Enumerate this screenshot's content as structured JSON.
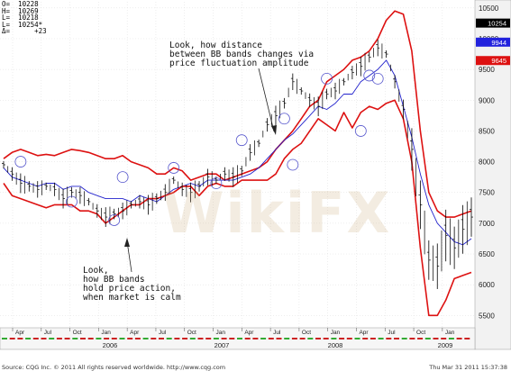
{
  "ohlc": {
    "open": "O=  10228",
    "high": "H=  10269",
    "low": "L=  10218",
    "close": "L=  10254*",
    "delta": "Δ=      +23"
  },
  "annotations": {
    "top": "Look, how distance\nbetween BB bands changes via\nprice fluctuation amplitude",
    "bottom": "Look,\nhow BB bands\nhold price action,\nwhen market is calm"
  },
  "watermark": "WikiFX",
  "footer": {
    "source": "Source: CQG Inc. © 2011 All rights reserved worldwide. http://www.cqg.com",
    "timestamp": "Thu Mar 31 2011 15:37:38"
  },
  "chart_data": {
    "type": "line",
    "title": "",
    "xlabel": "",
    "ylabel": "",
    "y_axis_side": "right",
    "ylim": [
      5300,
      10600
    ],
    "yticks": [
      "10500",
      "10000",
      "9500",
      "9000",
      "8500",
      "8000",
      "7500",
      "7000",
      "6500",
      "6000",
      "5500"
    ],
    "price_tags": [
      {
        "value": 10254,
        "label": "10254",
        "color": "#000000"
      },
      {
        "value": 9944,
        "label": "9944",
        "color": "#2222dd"
      },
      {
        "value": 9645,
        "label": "9645",
        "color": "#dd1111"
      }
    ],
    "month_labels": [
      "Apr",
      "Jul",
      "Oct",
      "Jan",
      "Apr",
      "Jul",
      "Oct",
      "Jan",
      "Apr",
      "Jul",
      "Oct",
      "Jan",
      "Apr",
      "Jul",
      "Oct",
      "Jan"
    ],
    "year_labels": [
      "2006",
      "2007",
      "2008",
      "2009"
    ],
    "x_period": "2005-03 .. 2009-03 (weekly)",
    "series": [
      {
        "name": "",
        "color": "#dd1111",
        "values": [
          8050,
          8150,
          8200,
          8150,
          8100,
          8120,
          8100,
          8150,
          8200,
          8180,
          8150,
          8100,
          8050,
          8050,
          8100,
          8000,
          7950,
          7900,
          7800,
          7800,
          7900,
          7850,
          7700,
          7750,
          7800,
          7800,
          7700,
          7750,
          7800,
          7850,
          7900,
          8000,
          8200,
          8350,
          8500,
          8700,
          8900,
          9000,
          9300,
          9400,
          9500,
          9650,
          9700,
          9800,
          10000,
          10300,
          10450,
          10400,
          9800,
          8500,
          7500,
          7200,
          7100,
          7100,
          7150,
          7200
        ]
      },
      {
        "name": "",
        "color": "#2222cc",
        "values": [
          7900,
          7750,
          7700,
          7650,
          7600,
          7650,
          7650,
          7550,
          7600,
          7600,
          7500,
          7450,
          7400,
          7400,
          7400,
          7350,
          7450,
          7400,
          7350,
          7450,
          7550,
          7600,
          7650,
          7600,
          7700,
          7700,
          7700,
          7700,
          7750,
          7800,
          7900,
          8050,
          8200,
          8350,
          8450,
          8600,
          8750,
          8900,
          8850,
          8950,
          9100,
          9100,
          9300,
          9400,
          9500,
          9650,
          9400,
          8900,
          8400,
          7800,
          7300,
          7000,
          6850,
          6700,
          6650,
          6750
        ]
      },
      {
        "name": "",
        "color": "#dd1111",
        "values": [
          7650,
          7450,
          7400,
          7350,
          7300,
          7250,
          7300,
          7300,
          7300,
          7200,
          7200,
          7150,
          7000,
          7100,
          7200,
          7300,
          7300,
          7400,
          7400,
          7450,
          7500,
          7600,
          7600,
          7450,
          7600,
          7650,
          7600,
          7600,
          7700,
          7700,
          7700,
          7700,
          7800,
          8050,
          8200,
          8300,
          8500,
          8700,
          8600,
          8500,
          8800,
          8550,
          8800,
          8900,
          8850,
          8950,
          9000,
          8700,
          8000,
          6600,
          5500,
          5500,
          5750,
          6100,
          6150,
          6200
        ]
      },
      {
        "name": "",
        "color": "#000000",
        "type": "ohlc",
        "values": [
          7950,
          7800,
          7650,
          7600,
          7550,
          7600,
          7550,
          7400,
          7500,
          7450,
          7350,
          7200,
          7100,
          7150,
          7200,
          7300,
          7350,
          7300,
          7400,
          7500,
          7700,
          7550,
          7500,
          7600,
          7750,
          7700,
          7800,
          7750,
          7850,
          8150,
          8300,
          8600,
          8750,
          8950,
          9300,
          9150,
          9000,
          8900,
          9100,
          9150,
          9300,
          9450,
          9550,
          9700,
          9850,
          9750,
          9300,
          8850,
          8200,
          7300,
          6400,
          6300,
          6800,
          6600,
          6900,
          7100
        ]
      }
    ],
    "grid": true,
    "legend": "none"
  }
}
